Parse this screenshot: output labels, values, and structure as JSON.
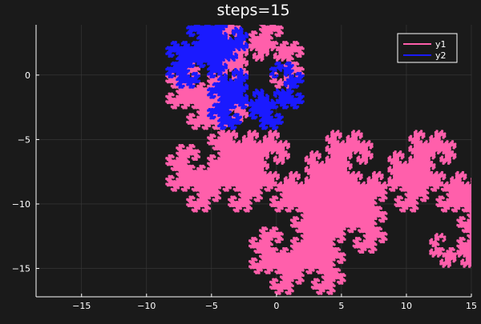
{
  "chart_data": {
    "type": "line",
    "title": "steps=15",
    "xlabel": "",
    "ylabel": "",
    "xlim": [
      -18.5,
      15
    ],
    "ylim": [
      -17.2,
      3.9
    ],
    "xticks": [
      -15,
      -10,
      -5,
      0,
      5,
      10,
      15
    ],
    "yticks": [
      0,
      -5,
      -10,
      -15
    ],
    "xtick_labels": [
      "−15",
      "−10",
      "−5",
      "0",
      "5",
      "10",
      "15"
    ],
    "ytick_labels": [
      "0",
      "−5",
      "−10",
      "−15"
    ],
    "grid": true,
    "legend_position": "top-right",
    "dragon_curve_steps": 15,
    "series": [
      {
        "name": "y1",
        "color": "#ff5fab",
        "curve": "Heighway dragon, 15 folds, unit segments, starting at (0,0) heading +x, turning left (counter-clockwise)",
        "start": [
          0,
          0
        ],
        "initial_heading_deg": 0,
        "turn_sign": 1
      },
      {
        "name": "y2",
        "color": "#1a1aff",
        "curve": "Heighway dragon, 15 folds, unit segments, starting at (0,0) heading +x, mirrored turns (clockwise)",
        "start": [
          0,
          0
        ],
        "initial_heading_deg": 0,
        "turn_sign": -1
      }
    ]
  },
  "colors": {
    "background": "#1a1a1a",
    "axis": "#ffffff",
    "grid": "#3a3a3a",
    "legend_frame": "#ffffff"
  }
}
